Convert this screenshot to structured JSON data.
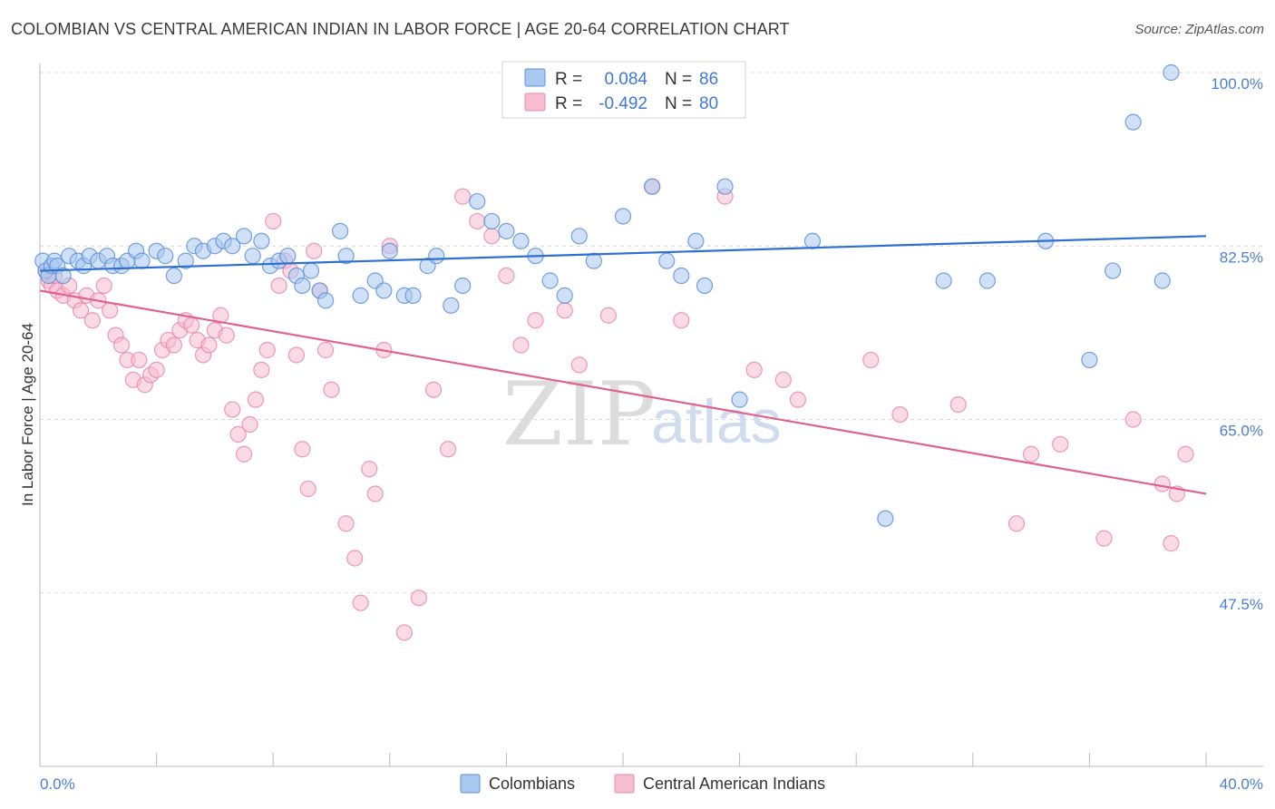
{
  "header": {
    "title": "COLOMBIAN VS CENTRAL AMERICAN INDIAN IN LABOR FORCE | AGE 20-64 CORRELATION CHART",
    "source": "Source: ZipAtlas.com"
  },
  "watermark": {
    "zip": "ZIP",
    "atlas": "atlas"
  },
  "legend": {
    "r_label": "R =",
    "n_label": "N =",
    "rows": [
      {
        "r": "0.084",
        "n": "86"
      },
      {
        "r": "-0.492",
        "n": "80"
      }
    ]
  },
  "colors": {
    "blue_fill": "#a9c8f0",
    "blue_stroke": "#5b90dc",
    "blue_line": "#2e6fd0",
    "pink_fill": "#f6bccf",
    "pink_stroke": "#ea8aa9",
    "pink_line": "#e0608e",
    "grid": "#d9d9d9",
    "tick_text": "#4a7fd4"
  },
  "chart_data": {
    "type": "scatter",
    "title": "COLOMBIAN VS CENTRAL AMERICAN INDIAN IN LABOR FORCE | AGE 20-64 CORRELATION CHART",
    "xlabel": "",
    "ylabel": "In Labor Force | Age 20-64",
    "xlim": [
      0,
      40
    ],
    "ylim": [
      30,
      100
    ],
    "x_tick_labels": [
      "0.0%",
      "40.0%"
    ],
    "y_ticks": [
      47.5,
      65.0,
      82.5,
      100.0
    ],
    "y_tick_labels": [
      "47.5%",
      "65.0%",
      "82.5%",
      "100.0%"
    ],
    "grid": true,
    "legend_position": "top-center",
    "series": [
      {
        "name": "Colombians",
        "r": 0.084,
        "n": 86,
        "trend": [
          [
            0,
            80.0
          ],
          [
            40,
            83.5
          ]
        ],
        "points": [
          [
            0.1,
            81.0
          ],
          [
            0.2,
            80.0
          ],
          [
            0.3,
            79.5
          ],
          [
            0.4,
            80.5
          ],
          [
            0.5,
            81.0
          ],
          [
            0.6,
            80.5
          ],
          [
            0.8,
            79.5
          ],
          [
            1.0,
            81.5
          ],
          [
            1.3,
            81.0
          ],
          [
            1.5,
            80.5
          ],
          [
            1.7,
            81.5
          ],
          [
            2.0,
            81.0
          ],
          [
            2.3,
            81.5
          ],
          [
            2.5,
            80.5
          ],
          [
            2.8,
            80.5
          ],
          [
            3.0,
            81.0
          ],
          [
            3.3,
            82.0
          ],
          [
            3.5,
            81.0
          ],
          [
            4.0,
            82.0
          ],
          [
            4.3,
            81.5
          ],
          [
            4.6,
            79.5
          ],
          [
            5.0,
            81.0
          ],
          [
            5.3,
            82.5
          ],
          [
            5.6,
            82.0
          ],
          [
            6.0,
            82.5
          ],
          [
            6.3,
            83.0
          ],
          [
            6.6,
            82.5
          ],
          [
            7.0,
            83.5
          ],
          [
            7.3,
            81.5
          ],
          [
            7.6,
            83.0
          ],
          [
            7.9,
            80.5
          ],
          [
            8.2,
            81.0
          ],
          [
            8.5,
            81.5
          ],
          [
            8.8,
            79.5
          ],
          [
            9.0,
            78.5
          ],
          [
            9.3,
            80.0
          ],
          [
            9.6,
            78.0
          ],
          [
            9.8,
            77.0
          ],
          [
            10.3,
            84.0
          ],
          [
            10.5,
            81.5
          ],
          [
            11.0,
            77.5
          ],
          [
            11.5,
            79.0
          ],
          [
            11.8,
            78.0
          ],
          [
            12.0,
            82.0
          ],
          [
            12.5,
            77.5
          ],
          [
            12.8,
            77.5
          ],
          [
            13.3,
            80.5
          ],
          [
            13.6,
            81.5
          ],
          [
            14.1,
            76.5
          ],
          [
            14.5,
            78.5
          ],
          [
            15.0,
            87.0
          ],
          [
            15.5,
            85.0
          ],
          [
            16.0,
            84.0
          ],
          [
            16.5,
            83.0
          ],
          [
            17.0,
            81.5
          ],
          [
            17.5,
            79.0
          ],
          [
            18.0,
            77.5
          ],
          [
            18.5,
            83.5
          ],
          [
            19.0,
            81.0
          ],
          [
            20.0,
            85.5
          ],
          [
            21.0,
            88.5
          ],
          [
            21.5,
            81.0
          ],
          [
            22.0,
            79.5
          ],
          [
            22.5,
            83.0
          ],
          [
            22.8,
            78.5
          ],
          [
            23.5,
            88.5
          ],
          [
            24.0,
            67.0
          ],
          [
            26.5,
            83.0
          ],
          [
            29.0,
            55.0
          ],
          [
            31.0,
            79.0
          ],
          [
            32.5,
            79.0
          ],
          [
            34.5,
            83.0
          ],
          [
            36.0,
            71.0
          ],
          [
            36.8,
            80.0
          ],
          [
            37.5,
            95.0
          ],
          [
            38.5,
            79.0
          ],
          [
            38.8,
            100.0
          ]
        ]
      },
      {
        "name": "Central American Indians",
        "r": -0.492,
        "n": 80,
        "trend": [
          [
            0,
            78.0
          ],
          [
            40,
            57.5
          ]
        ],
        "points": [
          [
            0.2,
            80.0
          ],
          [
            0.3,
            79.0
          ],
          [
            0.4,
            78.5
          ],
          [
            0.5,
            79.5
          ],
          [
            0.6,
            78.0
          ],
          [
            0.8,
            77.5
          ],
          [
            1.0,
            78.5
          ],
          [
            1.2,
            77.0
          ],
          [
            1.4,
            76.0
          ],
          [
            1.6,
            77.5
          ],
          [
            1.8,
            75.0
          ],
          [
            2.0,
            77.0
          ],
          [
            2.2,
            78.5
          ],
          [
            2.4,
            76.0
          ],
          [
            2.6,
            73.5
          ],
          [
            2.8,
            72.5
          ],
          [
            3.0,
            71.0
          ],
          [
            3.2,
            69.0
          ],
          [
            3.4,
            71.0
          ],
          [
            3.6,
            68.5
          ],
          [
            3.8,
            69.5
          ],
          [
            4.0,
            70.0
          ],
          [
            4.2,
            72.0
          ],
          [
            4.4,
            73.0
          ],
          [
            4.6,
            72.5
          ],
          [
            4.8,
            74.0
          ],
          [
            5.0,
            75.0
          ],
          [
            5.2,
            74.5
          ],
          [
            5.4,
            73.0
          ],
          [
            5.6,
            71.5
          ],
          [
            5.8,
            72.5
          ],
          [
            6.0,
            74.0
          ],
          [
            6.2,
            75.5
          ],
          [
            6.4,
            73.5
          ],
          [
            6.6,
            66.0
          ],
          [
            6.8,
            63.5
          ],
          [
            7.0,
            61.5
          ],
          [
            7.2,
            64.5
          ],
          [
            7.4,
            67.0
          ],
          [
            7.6,
            70.0
          ],
          [
            7.8,
            72.0
          ],
          [
            8.0,
            85.0
          ],
          [
            8.2,
            78.5
          ],
          [
            8.4,
            81.0
          ],
          [
            8.6,
            80.0
          ],
          [
            8.8,
            71.5
          ],
          [
            9.0,
            62.0
          ],
          [
            9.2,
            58.0
          ],
          [
            9.4,
            82.0
          ],
          [
            9.6,
            78.0
          ],
          [
            9.8,
            72.0
          ],
          [
            10.0,
            68.0
          ],
          [
            10.5,
            54.5
          ],
          [
            10.8,
            51.0
          ],
          [
            11.0,
            46.5
          ],
          [
            11.3,
            60.0
          ],
          [
            11.5,
            57.5
          ],
          [
            11.8,
            72.0
          ],
          [
            12.0,
            82.5
          ],
          [
            12.5,
            43.5
          ],
          [
            13.0,
            47.0
          ],
          [
            13.5,
            68.0
          ],
          [
            14.0,
            62.0
          ],
          [
            14.5,
            87.5
          ],
          [
            15.0,
            85.0
          ],
          [
            15.5,
            83.5
          ],
          [
            16.0,
            79.5
          ],
          [
            16.5,
            72.5
          ],
          [
            17.0,
            75.0
          ],
          [
            18.0,
            76.0
          ],
          [
            18.5,
            70.5
          ],
          [
            19.5,
            75.5
          ],
          [
            21.0,
            88.5
          ],
          [
            22.0,
            75.0
          ],
          [
            23.5,
            87.5
          ],
          [
            24.5,
            70.0
          ],
          [
            25.5,
            69.0
          ],
          [
            26.0,
            67.0
          ],
          [
            28.5,
            71.0
          ],
          [
            29.5,
            65.5
          ],
          [
            31.5,
            66.5
          ],
          [
            33.5,
            54.5
          ],
          [
            34.0,
            61.5
          ],
          [
            35.0,
            62.5
          ],
          [
            36.5,
            53.0
          ],
          [
            37.5,
            65.0
          ],
          [
            38.5,
            58.5
          ],
          [
            38.8,
            52.5
          ],
          [
            39.0,
            57.5
          ],
          [
            39.3,
            61.5
          ]
        ]
      }
    ]
  },
  "bottom_legend": {
    "items": [
      "Colombians",
      "Central American Indians"
    ]
  }
}
